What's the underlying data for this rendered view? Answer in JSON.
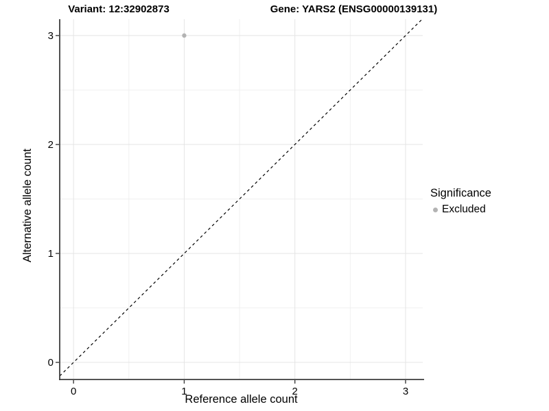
{
  "header": {
    "title_left": "Variant: 12:32902873",
    "title_right": "Gene: YARS2 (ENSG00000139131)"
  },
  "legend": {
    "title": "Significance",
    "items": [
      {
        "label": "Excluded",
        "color": "#b3b3b3",
        "marker": "circle"
      }
    ]
  },
  "colors": {
    "point": "#b3b3b3",
    "grid_major": "#e4e4e4",
    "grid_minor": "#f0f0f0",
    "axis_line": "#3c3c3c",
    "text": "#000000",
    "background": "#ffffff"
  },
  "chart_data": {
    "type": "scatter",
    "title": "",
    "xlabel": "Reference allele count",
    "ylabel": "Alternative allele count",
    "points": [
      {
        "x": 1,
        "y": 3,
        "series": "Excluded"
      }
    ],
    "series": [
      {
        "name": "Excluded",
        "color": "#b3b3b3"
      }
    ],
    "identity_line": {
      "style": "dashed",
      "color": "#000000",
      "from": -0.125,
      "to": 3.155
    },
    "xlim": [
      -0.125,
      3.155
    ],
    "ylim": [
      -0.157,
      3.15
    ],
    "x_ticks": [
      0,
      1,
      2,
      3
    ],
    "y_ticks": [
      0,
      1,
      2,
      3
    ],
    "x_minor": [
      0.5,
      1.5,
      2.5
    ],
    "y_minor": [
      0.5,
      1.5,
      2.5
    ],
    "grid": "major+minor",
    "legend_position": "right"
  }
}
